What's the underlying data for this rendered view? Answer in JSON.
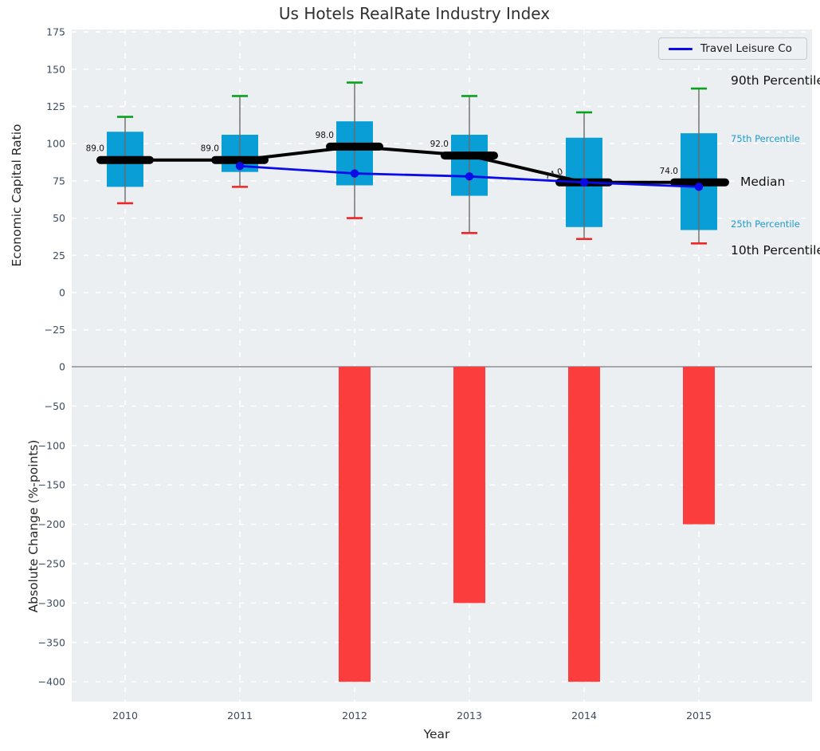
{
  "title": "Us Hotels RealRate Industry Index",
  "legend": {
    "label": "Travel Leisure Co",
    "line_color": "#0b0be8"
  },
  "top_axis": {
    "label": "Economic Capital Ratio"
  },
  "bottom_axis": {
    "label": "Absolute Change (%-points)"
  },
  "x_axis": {
    "label": "Year"
  },
  "annotations": {
    "p90": "90th Percentile",
    "p75": "75th Percentile",
    "median": "Median",
    "p25": "25th Percentile",
    "p10": "10th Percentile"
  },
  "colors": {
    "panel_bg": "#eceff1",
    "grid": "#ffffff",
    "tick": "#3b4c60",
    "box_fill": "#0a9ed6",
    "bar_fill": "#fb3d3d",
    "median": "#000000",
    "line_blue": "#0b0be8",
    "cap_high": "#0aa21c",
    "cap_low": "#f02525",
    "whisker": "#6a6a6a",
    "zero_line": "#a6a6ab",
    "value_label": "#111111",
    "percentile_label_blue": "#1f9ace",
    "title": "#303030"
  },
  "chart_data": [
    {
      "type": "boxplot",
      "title": "Us Hotels RealRate Industry Index",
      "xlabel": "Year",
      "ylabel": "Economic Capital Ratio",
      "ylim": [
        -35,
        177
      ],
      "yticks": [
        175,
        150,
        125,
        100,
        75,
        50,
        25,
        0,
        -25
      ],
      "grid": true,
      "legend_position": "upper right",
      "categories": [
        "2010",
        "2011",
        "2012",
        "2013",
        "2014",
        "2015"
      ],
      "series": [
        {
          "name": "90th Percentile",
          "values": [
            118,
            132,
            141,
            132,
            121,
            137
          ]
        },
        {
          "name": "75th Percentile",
          "values": [
            108,
            106,
            115,
            106,
            104,
            107
          ]
        },
        {
          "name": "Median",
          "values": [
            89,
            89,
            98,
            92,
            74,
            74
          ]
        },
        {
          "name": "25th Percentile",
          "values": [
            71,
            81,
            72,
            65,
            44,
            42
          ]
        },
        {
          "name": "10th Percentile",
          "values": [
            60,
            71,
            50,
            40,
            36,
            33
          ]
        },
        {
          "name": "Travel Leisure Co",
          "type": "line",
          "values": [
            null,
            85,
            80,
            78,
            74,
            71
          ]
        }
      ],
      "median_labels": [
        "89.0",
        "89.0",
        "98.0",
        "92.0",
        "74.0",
        "74.0"
      ]
    },
    {
      "type": "bar",
      "ylabel": "Absolute Change (%-points)",
      "ylim": [
        -425,
        27
      ],
      "yticks": [
        0,
        -50,
        -100,
        -150,
        -200,
        -250,
        -300,
        -350,
        -400
      ],
      "grid": true,
      "categories": [
        "2010",
        "2011",
        "2012",
        "2013",
        "2014",
        "2015"
      ],
      "values": [
        null,
        null,
        -400,
        -300,
        -400,
        -200
      ],
      "bar_color": "#fb3d3d"
    }
  ]
}
